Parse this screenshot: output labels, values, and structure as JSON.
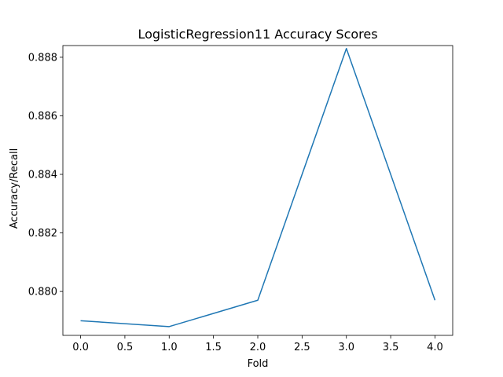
{
  "chart_data": {
    "type": "line",
    "title": "LogisticRegression11 Accuracy Scores",
    "xlabel": "Fold",
    "ylabel": "Accuracy/Recall",
    "xlim": [
      -0.2,
      4.2
    ],
    "ylim": [
      0.8785,
      0.8884
    ],
    "xticks": [
      0.0,
      0.5,
      1.0,
      1.5,
      2.0,
      2.5,
      3.0,
      3.5,
      4.0
    ],
    "xtick_labels": [
      "0.0",
      "0.5",
      "1.0",
      "1.5",
      "2.0",
      "2.5",
      "3.0",
      "3.5",
      "4.0"
    ],
    "yticks": [
      0.88,
      0.882,
      0.884,
      0.886,
      0.888
    ],
    "ytick_labels": [
      "0.880",
      "0.882",
      "0.884",
      "0.886",
      "0.888"
    ],
    "grid": false,
    "series": [
      {
        "color": "#1f77b4",
        "x": [
          0,
          1,
          2,
          3,
          4
        ],
        "values": [
          0.879,
          0.8788,
          0.8797,
          0.8883,
          0.8797
        ]
      }
    ]
  }
}
